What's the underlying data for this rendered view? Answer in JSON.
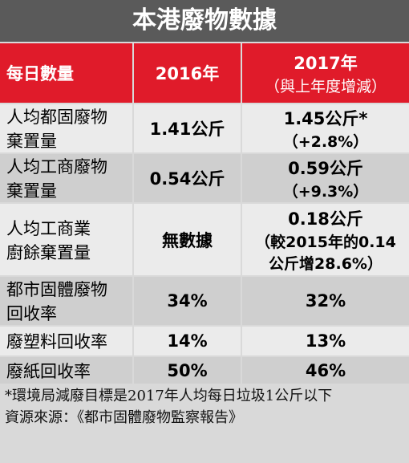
{
  "title": "本港廢物數據",
  "table": {
    "header": [
      "每日數量",
      "2016年",
      [
        "2017年",
        "（與上年度增減）"
      ]
    ],
    "rows": [
      [
        [
          "人均都固廢物",
          "棄置量"
        ],
        [
          "1.41公斤"
        ],
        [
          "1.45公斤*",
          "（+2.8%）"
        ]
      ],
      [
        [
          "人均工商廢物",
          "棄置量"
        ],
        [
          "0.54公斤"
        ],
        [
          "0.59公斤",
          "（+9.3%）"
        ]
      ],
      [
        [
          "人均工商業",
          "廚餘棄置量"
        ],
        [
          "無數據"
        ],
        [
          "0.18公斤",
          "（較2015年的0.14",
          "公斤增28.6%）"
        ]
      ],
      [
        [
          "都市固體廢物",
          "回收率"
        ],
        [
          "34%"
        ],
        [
          "32%"
        ]
      ],
      [
        [
          "廢塑料回收率"
        ],
        [
          "14%"
        ],
        [
          "13%"
        ]
      ],
      [
        [
          "廢紙回收率"
        ],
        [
          "50%"
        ],
        [
          "46%"
        ]
      ]
    ]
  },
  "footnotes": [
    "*環境局減廢目標是2017年人均每日垃圾1公斤以下",
    "資源來源：《都市固體廢物監察報告》"
  ]
}
